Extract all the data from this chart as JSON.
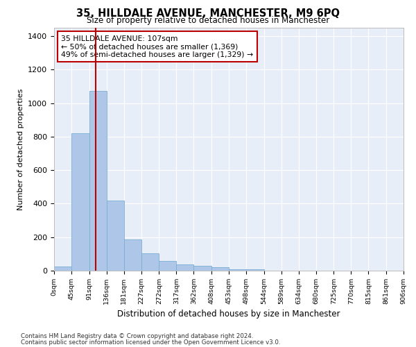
{
  "title": "35, HILLDALE AVENUE, MANCHESTER, M9 6PQ",
  "subtitle": "Size of property relative to detached houses in Manchester",
  "xlabel": "Distribution of detached houses by size in Manchester",
  "ylabel": "Number of detached properties",
  "bar_color": "#aec6e8",
  "bar_edge_color": "#7aafd4",
  "vline_x": 107,
  "vline_color": "#bb0000",
  "annotation_title": "35 HILLDALE AVENUE: 107sqm",
  "annotation_line2": "← 50% of detached houses are smaller (1,369)",
  "annotation_line3": "49% of semi-detached houses are larger (1,329) →",
  "annotation_box_color": "#bb0000",
  "bin_edges": [
    0,
    45,
    91,
    136,
    181,
    227,
    272,
    317,
    362,
    408,
    453,
    498,
    544,
    589,
    634,
    680,
    725,
    770,
    815,
    861,
    906
  ],
  "bar_heights": [
    25,
    820,
    1075,
    420,
    185,
    105,
    57,
    37,
    30,
    20,
    10,
    8,
    0,
    0,
    0,
    0,
    0,
    0,
    0,
    0
  ],
  "ylim": [
    0,
    1450
  ],
  "yticks": [
    0,
    200,
    400,
    600,
    800,
    1000,
    1200,
    1400
  ],
  "plot_bg_color": "#e8eef8",
  "footer_line1": "Contains HM Land Registry data © Crown copyright and database right 2024.",
  "footer_line2": "Contains public sector information licensed under the Open Government Licence v3.0."
}
